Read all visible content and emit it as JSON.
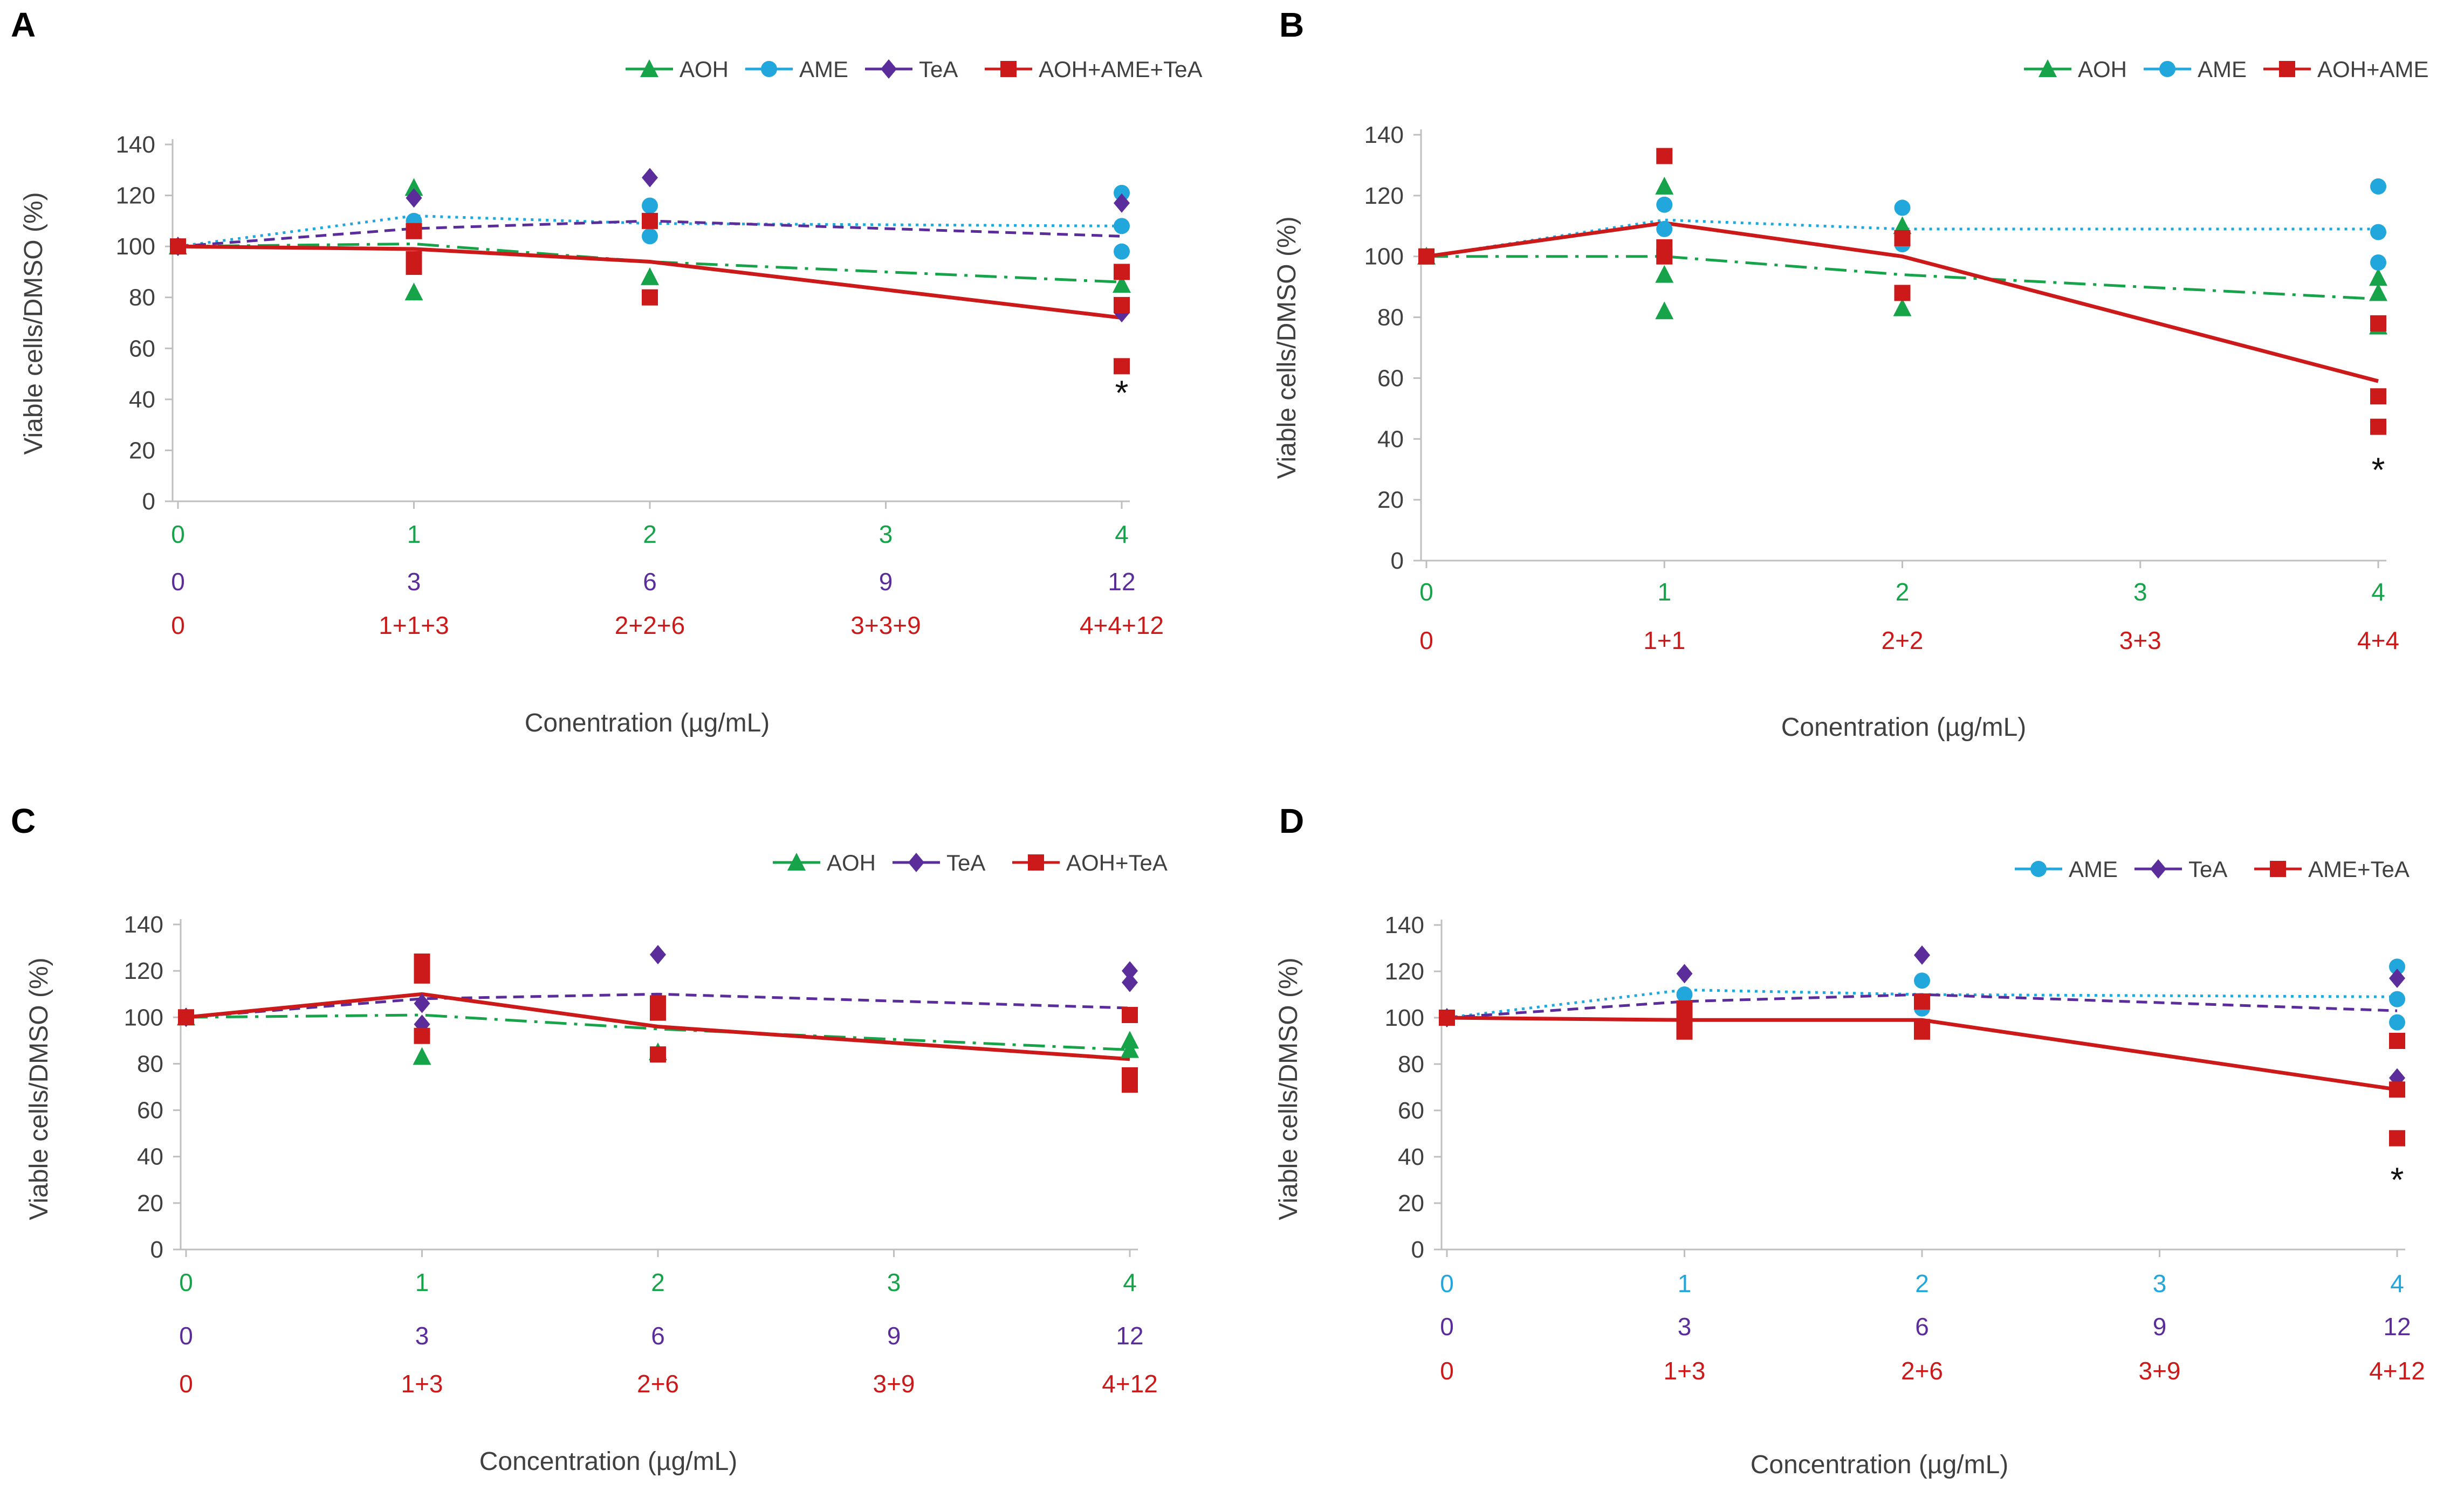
{
  "colors": {
    "AOH": "#16a34a",
    "AME": "#22a7dd",
    "TeA": "#5b2d9a",
    "MIX": "#cc1a1a",
    "axis": "#bfbfbf",
    "text": "#404040"
  },
  "chart_data": [
    {
      "panel": "A",
      "type": "line",
      "xlabel": "Conentration (µg/mL)",
      "ylabel": "Viable cells/DMSO (%)",
      "ylim": [
        0,
        140
      ],
      "yticks": [
        0,
        20,
        40,
        60,
        80,
        100,
        120,
        140
      ],
      "ytick_labels": [
        "0",
        "20",
        "40",
        "60",
        "80",
        "100",
        "120",
        "140"
      ],
      "x_positions": [
        0,
        1,
        2,
        3,
        4
      ],
      "x_label_rows": [
        {
          "color_key": "AOH",
          "labels": [
            "0",
            "1",
            "2",
            "3",
            "4"
          ]
        },
        {
          "color_key": "TeA",
          "labels": [
            "0",
            "3",
            "6",
            "9",
            "12"
          ]
        },
        {
          "color_key": "MIX",
          "labels": [
            "0",
            "1+1+3",
            "2+2+6",
            "3+3+9",
            "4+4+12"
          ]
        }
      ],
      "series": [
        {
          "name": "AOH",
          "color_key": "AOH",
          "marker": "triangle",
          "dash": "dashdot",
          "line": [
            [
              0,
              100
            ],
            [
              1,
              101
            ],
            [
              2,
              94
            ],
            [
              4,
              86
            ]
          ],
          "points": [
            [
              0,
              100
            ],
            [
              1,
              123
            ],
            [
              1,
              82
            ],
            [
              2,
              88
            ],
            [
              4,
              85
            ]
          ]
        },
        {
          "name": "AME",
          "color_key": "AME",
          "marker": "circle",
          "dash": "dotted",
          "line": [
            [
              0,
              100
            ],
            [
              1,
              112
            ],
            [
              2,
              109
            ],
            [
              4,
              108
            ]
          ],
          "points": [
            [
              0,
              100
            ],
            [
              1,
              110
            ],
            [
              2,
              116
            ],
            [
              2,
              104
            ],
            [
              4,
              121
            ],
            [
              4,
              108
            ],
            [
              4,
              98
            ]
          ]
        },
        {
          "name": "TeA",
          "color_key": "TeA",
          "marker": "diamond",
          "dash": "dashed",
          "line": [
            [
              0,
              100
            ],
            [
              1,
              107
            ],
            [
              2,
              110
            ],
            [
              4,
              104
            ]
          ],
          "points": [
            [
              0,
              100
            ],
            [
              1,
              119
            ],
            [
              2,
              127
            ],
            [
              4,
              117
            ],
            [
              4,
              74
            ]
          ]
        },
        {
          "name": "AOH+AME+TeA",
          "color_key": "MIX",
          "marker": "square",
          "dash": "solid",
          "line": [
            [
              0,
              100
            ],
            [
              1,
              99
            ],
            [
              2,
              94
            ],
            [
              4,
              72
            ]
          ],
          "points": [
            [
              0,
              100
            ],
            [
              1,
              106
            ],
            [
              1,
              95
            ],
            [
              1,
              92
            ],
            [
              2,
              110
            ],
            [
              2,
              80
            ],
            [
              4,
              90
            ],
            [
              4,
              77
            ],
            [
              4,
              53
            ]
          ]
        }
      ],
      "annotations": [
        {
          "text": "*",
          "x": 4,
          "y": 38
        }
      ]
    },
    {
      "panel": "B",
      "type": "line",
      "xlabel": "Conentration (µg/mL)",
      "ylabel": "Viable cells/DMSO (%)",
      "ylim": [
        0,
        140
      ],
      "yticks": [
        0,
        20,
        40,
        60,
        80,
        100,
        120,
        140
      ],
      "ytick_labels": [
        "0",
        "20",
        "40",
        "60",
        "80",
        "100",
        "120",
        "140"
      ],
      "x_positions": [
        0,
        1,
        2,
        3,
        4
      ],
      "x_label_rows": [
        {
          "color_key": "AOH",
          "labels": [
            "0",
            "1",
            "2",
            "3",
            "4"
          ]
        },
        {
          "color_key": "MIX",
          "labels": [
            "0",
            "1+1",
            "2+2",
            "3+3",
            "4+4"
          ]
        }
      ],
      "series": [
        {
          "name": "AOH",
          "color_key": "AOH",
          "marker": "triangle",
          "dash": "dashdot",
          "line": [
            [
              0,
              100
            ],
            [
              1,
              100
            ],
            [
              2,
              94
            ],
            [
              4,
              86
            ]
          ],
          "points": [
            [
              0,
              100
            ],
            [
              1,
              123
            ],
            [
              1,
              94
            ],
            [
              1,
              82
            ],
            [
              2,
              110
            ],
            [
              2,
              83
            ],
            [
              4,
              93
            ],
            [
              4,
              88
            ],
            [
              4,
              77
            ]
          ]
        },
        {
          "name": "AME",
          "color_key": "AME",
          "marker": "circle",
          "dash": "dotted",
          "line": [
            [
              0,
              100
            ],
            [
              1,
              112
            ],
            [
              2,
              109
            ],
            [
              4,
              109
            ]
          ],
          "points": [
            [
              0,
              100
            ],
            [
              1,
              117
            ],
            [
              1,
              109
            ],
            [
              2,
              116
            ],
            [
              2,
              104
            ],
            [
              4,
              123
            ],
            [
              4,
              108
            ],
            [
              4,
              98
            ]
          ]
        },
        {
          "name": "AOH+AME",
          "color_key": "MIX",
          "marker": "square",
          "dash": "solid",
          "line": [
            [
              0,
              100
            ],
            [
              1,
              111
            ],
            [
              2,
              100
            ],
            [
              4,
              59
            ]
          ],
          "points": [
            [
              0,
              100
            ],
            [
              1,
              133
            ],
            [
              1,
              103
            ],
            [
              1,
              100
            ],
            [
              2,
              106
            ],
            [
              2,
              88
            ],
            [
              4,
              78
            ],
            [
              4,
              54
            ],
            [
              4,
              44
            ]
          ]
        }
      ],
      "annotations": [
        {
          "text": "*",
          "x": 4,
          "y": 26
        }
      ]
    },
    {
      "panel": "C",
      "type": "line",
      "xlabel": "Concentration (µg/mL)",
      "ylabel": "Viable cells/DMSO (%)",
      "ylim": [
        0,
        140
      ],
      "yticks": [
        0,
        20,
        40,
        60,
        80,
        100,
        120,
        140
      ],
      "ytick_labels": [
        "0",
        "20",
        "40",
        "60",
        "80",
        "100",
        "120",
        "140"
      ],
      "x_positions": [
        0,
        1,
        2,
        3,
        4
      ],
      "x_label_rows": [
        {
          "color_key": "AOH",
          "labels": [
            "0",
            "1",
            "2",
            "3",
            "4"
          ]
        },
        {
          "color_key": "TeA",
          "labels": [
            "0",
            "3",
            "6",
            "9",
            "12"
          ]
        },
        {
          "color_key": "MIX",
          "labels": [
            "0",
            "1+3",
            "2+6",
            "3+9",
            "4+12"
          ]
        }
      ],
      "series": [
        {
          "name": "AOH",
          "color_key": "AOH",
          "marker": "triangle",
          "dash": "dashdot",
          "line": [
            [
              0,
              100
            ],
            [
              1,
              101
            ],
            [
              2,
              95
            ],
            [
              4,
              86
            ]
          ],
          "points": [
            [
              0,
              100
            ],
            [
              1,
              83
            ],
            [
              2,
              85
            ],
            [
              4,
              90
            ],
            [
              4,
              86
            ]
          ]
        },
        {
          "name": "TeA",
          "color_key": "TeA",
          "marker": "diamond",
          "dash": "dashed",
          "line": [
            [
              0,
              100
            ],
            [
              1,
              108
            ],
            [
              2,
              110
            ],
            [
              4,
              104
            ]
          ],
          "points": [
            [
              0,
              100
            ],
            [
              1,
              106
            ],
            [
              1,
              97
            ],
            [
              2,
              127
            ],
            [
              4,
              120
            ],
            [
              4,
              115
            ]
          ]
        },
        {
          "name": "AOH+TeA",
          "color_key": "MIX",
          "marker": "square",
          "dash": "solid",
          "line": [
            [
              0,
              100
            ],
            [
              1,
              110
            ],
            [
              2,
              96
            ],
            [
              4,
              82
            ]
          ],
          "points": [
            [
              0,
              100
            ],
            [
              1,
              124
            ],
            [
              1,
              118
            ],
            [
              1,
              92
            ],
            [
              2,
              106
            ],
            [
              2,
              102
            ],
            [
              2,
              84
            ],
            [
              4,
              101
            ],
            [
              4,
              75
            ],
            [
              4,
              71
            ]
          ]
        }
      ],
      "annotations": []
    },
    {
      "panel": "D",
      "type": "line",
      "xlabel": "Concentration (µg/mL)",
      "ylabel": "Viable cells/DMSO (%)",
      "ylim": [
        0,
        140
      ],
      "yticks": [
        0,
        20,
        40,
        60,
        80,
        100,
        120,
        140
      ],
      "ytick_labels": [
        "0",
        "20",
        "40",
        "60",
        "80",
        "100",
        "120",
        "140"
      ],
      "x_positions": [
        0,
        1,
        2,
        3,
        4
      ],
      "x_label_rows": [
        {
          "color_key": "AME",
          "labels": [
            "0",
            "1",
            "2",
            "3",
            "4"
          ]
        },
        {
          "color_key": "TeA",
          "labels": [
            "0",
            "3",
            "6",
            "9",
            "12"
          ]
        },
        {
          "color_key": "MIX",
          "labels": [
            "0",
            "1+3",
            "2+6",
            "3+9",
            "4+12"
          ]
        }
      ],
      "series": [
        {
          "name": "AME",
          "color_key": "AME",
          "marker": "circle",
          "dash": "dotted",
          "line": [
            [
              0,
              100
            ],
            [
              1,
              112
            ],
            [
              2,
              110
            ],
            [
              4,
              109
            ]
          ],
          "points": [
            [
              0,
              100
            ],
            [
              1,
              110
            ],
            [
              2,
              116
            ],
            [
              2,
              104
            ],
            [
              4,
              122
            ],
            [
              4,
              108
            ],
            [
              4,
              98
            ]
          ]
        },
        {
          "name": "TeA",
          "color_key": "TeA",
          "marker": "diamond",
          "dash": "dashed",
          "line": [
            [
              0,
              100
            ],
            [
              1,
              107
            ],
            [
              2,
              110
            ],
            [
              4,
              103
            ]
          ],
          "points": [
            [
              0,
              100
            ],
            [
              1,
              119
            ],
            [
              2,
              127
            ],
            [
              4,
              117
            ],
            [
              4,
              74
            ]
          ]
        },
        {
          "name": "AME+TeA",
          "color_key": "MIX",
          "marker": "square",
          "dash": "solid",
          "line": [
            [
              0,
              100
            ],
            [
              1,
              99
            ],
            [
              2,
              99
            ],
            [
              4,
              69
            ]
          ],
          "points": [
            [
              0,
              100
            ],
            [
              1,
              104
            ],
            [
              1,
              99
            ],
            [
              1,
              94
            ],
            [
              2,
              107
            ],
            [
              2,
              96
            ],
            [
              2,
              94
            ],
            [
              4,
              90
            ],
            [
              4,
              69
            ],
            [
              4,
              48
            ]
          ]
        }
      ],
      "annotations": [
        {
          "text": "*",
          "x": 4,
          "y": 25
        }
      ]
    }
  ]
}
